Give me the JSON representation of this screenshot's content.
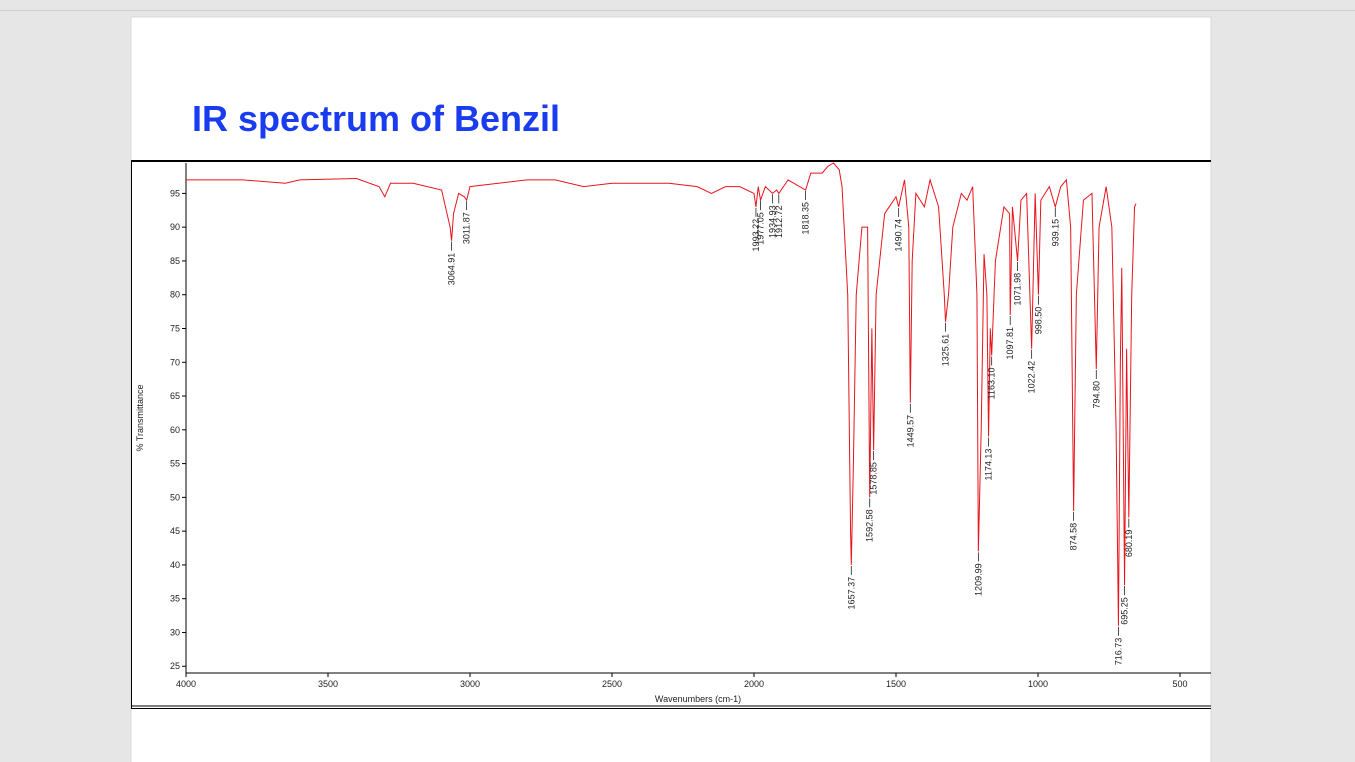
{
  "chart_data": {
    "type": "line",
    "title": "IR spectrum of Benzil",
    "x_label": "Wavenumbers (cm-1)",
    "y_label": "% Transmittance",
    "color": "#e8141c",
    "xlim": [
      4000,
      500
    ],
    "ylim": [
      24,
      99.5
    ],
    "xticks": [
      4000,
      3500,
      3000,
      2500,
      2000,
      1500,
      1000,
      500
    ],
    "yticks": [
      25,
      30,
      35,
      40,
      45,
      50,
      55,
      60,
      65,
      70,
      75,
      80,
      85,
      90,
      95
    ],
    "x": [
      4000,
      3800,
      3650,
      3600,
      3400,
      3320,
      3300,
      3280,
      3200,
      3100,
      3070,
      3064.91,
      3058,
      3040,
      3020,
      3011.87,
      3000,
      2900,
      2800,
      2700,
      2600,
      2500,
      2400,
      2300,
      2200,
      2150,
      2100,
      2050,
      2000,
      1993.22,
      1985,
      1977.05,
      1960,
      1934.93,
      1920,
      1912.72,
      1880,
      1818.35,
      1800,
      1760,
      1740,
      1720,
      1700,
      1690,
      1670,
      1660,
      1657.37,
      1650,
      1640,
      1620,
      1600,
      1592.58,
      1585,
      1578.85,
      1570,
      1540,
      1500,
      1490.74,
      1470,
      1455,
      1449.57,
      1443,
      1430,
      1400,
      1380,
      1350,
      1330,
      1325.61,
      1315,
      1300,
      1270,
      1250,
      1230,
      1215,
      1209.99,
      1200,
      1190,
      1180,
      1174.13,
      1168,
      1163.1,
      1150,
      1120,
      1100,
      1097.81,
      1090,
      1071.98,
      1060,
      1040,
      1022.42,
      1010,
      998.5,
      990,
      960,
      939.15,
      920,
      900,
      885,
      874.58,
      865,
      840,
      810,
      794.8,
      785,
      760,
      740,
      725,
      716.73,
      710,
      705,
      695.25,
      688,
      680.19,
      670,
      660,
      655
    ],
    "values": [
      97,
      97,
      96.5,
      97,
      97.2,
      96,
      94.5,
      96.5,
      96.5,
      95.5,
      90,
      88,
      92,
      95,
      94.5,
      94,
      96,
      96.5,
      97,
      97,
      96,
      96.5,
      96.5,
      96.5,
      96,
      95,
      96,
      96,
      95,
      93,
      96,
      94,
      96,
      95,
      95.5,
      95,
      97,
      95.5,
      98,
      98,
      99,
      99.5,
      98.5,
      96,
      80,
      45,
      40,
      55,
      80,
      90,
      90,
      50,
      75,
      57,
      80,
      92,
      94.5,
      93,
      97,
      90,
      64,
      85,
      95,
      93,
      97,
      93,
      80,
      76,
      80,
      90,
      95,
      94,
      96,
      80,
      42,
      60,
      86,
      80,
      59,
      75,
      71,
      85,
      93,
      92,
      77,
      93,
      85,
      94,
      95,
      72,
      95,
      80,
      94,
      96,
      93,
      96,
      97,
      90,
      48,
      80,
      94,
      95,
      69,
      90,
      96,
      90,
      60,
      31,
      70,
      84,
      37,
      72,
      47,
      80,
      93,
      93.5
    ],
    "peaks": [
      {
        "value": 3064.91,
        "label": "3064.91"
      },
      {
        "value": 3011.87,
        "label": "3011.87"
      },
      {
        "value": 1993.22,
        "label": "1993.22"
      },
      {
        "value": 1977.05,
        "label": "1977.05"
      },
      {
        "value": 1934.93,
        "label": "1934.93"
      },
      {
        "value": 1912.72,
        "label": "1912.72"
      },
      {
        "value": 1818.35,
        "label": "1818.35"
      },
      {
        "value": 1657.37,
        "label": "1657.37"
      },
      {
        "value": 1592.58,
        "label": "1592.58"
      },
      {
        "value": 1578.85,
        "label": "1578.85"
      },
      {
        "value": 1490.74,
        "label": "1490.74"
      },
      {
        "value": 1449.57,
        "label": "1449.57"
      },
      {
        "value": 1325.61,
        "label": "1325.61"
      },
      {
        "value": 1209.99,
        "label": "1209.99"
      },
      {
        "value": 1174.13,
        "label": "1174.13"
      },
      {
        "value": 1163.1,
        "label": "1163.10"
      },
      {
        "value": 1097.81,
        "label": "1097.81"
      },
      {
        "value": 1071.98,
        "label": "1071.98"
      },
      {
        "value": 1022.42,
        "label": "1022.42"
      },
      {
        "value": 998.5,
        "label": "998.50"
      },
      {
        "value": 939.15,
        "label": "939.15"
      },
      {
        "value": 874.58,
        "label": "874.58"
      },
      {
        "value": 794.8,
        "label": "794.80"
      },
      {
        "value": 716.73,
        "label": "716.73"
      },
      {
        "value": 695.25,
        "label": "695.25"
      },
      {
        "value": 680.19,
        "label": "680.19"
      }
    ]
  }
}
